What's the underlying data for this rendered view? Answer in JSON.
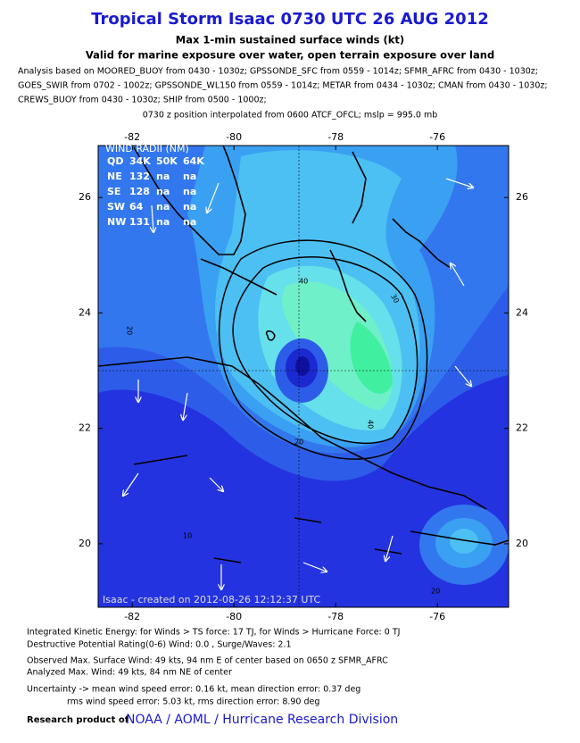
{
  "header": {
    "title": "Tropical Storm Isaac 0730 UTC 26 AUG 2012",
    "subtitle": "Max 1-min sustained surface winds (kt)",
    "validity": "Valid for marine exposure over water, open terrain exposure over land",
    "analysis": [
      "Analysis based on MOORED_BUOY from 0430 - 1030z; GPSSONDE_SFC from 0559 - 1014z; SFMR_AFRC from 0430 - 1030z;",
      "GOES_SWIR from 0702 - 1002z; GPSSONDE_WL150 from 0559 - 1014z; METAR from 0434 - 1030z; CMAN from 0430 - 1030z;",
      "CREWS_BUOY from 0430 - 1030z; SHIP from 0500 - 1000z;"
    ],
    "position_note": "0730 z position interpolated from 0600 ATCF_OFCL; mslp = 995.0 mb"
  },
  "map": {
    "xlim": [
      -82.67,
      -74.6
    ],
    "ylim": [
      18.9,
      26.9
    ],
    "xticks": [
      -82,
      -80,
      -78,
      -76
    ],
    "yticks": [
      20,
      22,
      24,
      26
    ],
    "contour_labels": [
      "40",
      "30",
      "40",
      "20",
      "20",
      "10",
      "20"
    ],
    "stamp": "Isaac - created on 2012-08-26 12:12:37 UTC"
  },
  "wind_radii": {
    "title": "WIND RADII (NM)",
    "header": [
      "QD",
      "34K",
      "50K",
      "64K"
    ],
    "rows": [
      [
        "NE",
        "132",
        "na",
        "na"
      ],
      [
        "SE",
        "128",
        "na",
        "na"
      ],
      [
        "SW",
        "64",
        "na",
        "na"
      ],
      [
        "NW",
        "131",
        "na",
        "na"
      ]
    ]
  },
  "footer": {
    "lines": [
      "Integrated Kinetic Energy: for Winds > TS force: 17 TJ, for Winds > Hurricane Force: 0 TJ",
      "Destructive Potential Rating(0-6)  Wind: 0.0 , Surge/Waves: 2.1",
      "Observed Max. Surface Wind: 49 kts, 94 nm E of center based on 0650 z SFMR_AFRC",
      "Analyzed Max. Wind: 49 kts, 84 nm  NE of center",
      "Uncertainty -> mean wind speed error: 0.16 kt, mean direction error: 0.37 deg",
      "rms wind speed error: 5.03 kt, rms direction error: 8.90 deg"
    ],
    "credit_label": "Research product of",
    "credit": "NOAA / AOML / Hurricane Research Division"
  }
}
